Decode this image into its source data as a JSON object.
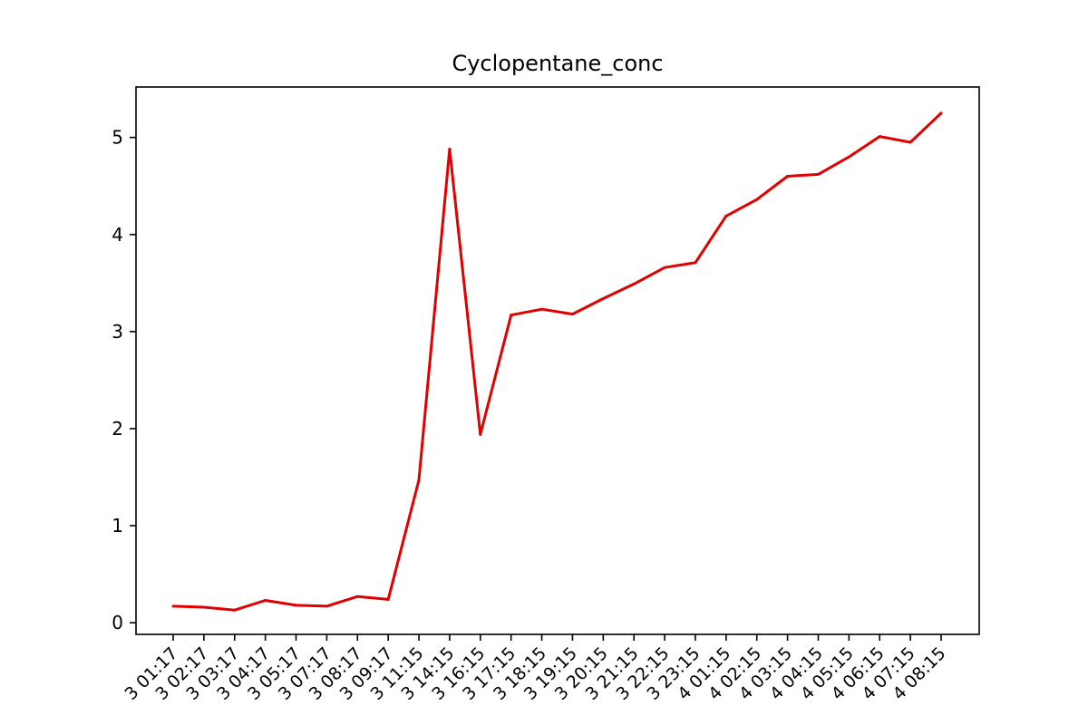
{
  "chart_data": {
    "type": "line",
    "title": "Cyclopentane_conc",
    "xlabel": "",
    "ylabel": "",
    "ylim": [
      -0.12,
      5.52
    ],
    "yticks": [
      0,
      1,
      2,
      3,
      4,
      5
    ],
    "grid": false,
    "legend": "none",
    "x": [
      "3 01:17",
      "3 02:17",
      "3 03:17",
      "3 04:17",
      "3 05:17",
      "3 07:17",
      "3 08:17",
      "3 09:17",
      "3 11:15",
      "3 14:15",
      "3 16:15",
      "3 17:15",
      "3 18:15",
      "3 19:15",
      "3 20:15",
      "3 21:15",
      "3 22:15",
      "3 23:15",
      "4 01:15",
      "4 02:15",
      "4 03:15",
      "4 04:15",
      "4 05:15",
      "4 06:15",
      "4 07:15",
      "4 08:15"
    ],
    "series": [
      {
        "color": "#e00000",
        "values": [
          0.17,
          0.16,
          0.13,
          0.23,
          0.18,
          0.17,
          0.27,
          0.24,
          1.47,
          4.88,
          1.94,
          3.17,
          3.23,
          3.18,
          3.34,
          3.49,
          3.66,
          3.71,
          4.19,
          4.36,
          4.6,
          4.62,
          4.8,
          5.01,
          4.95,
          5.25
        ]
      }
    ]
  }
}
